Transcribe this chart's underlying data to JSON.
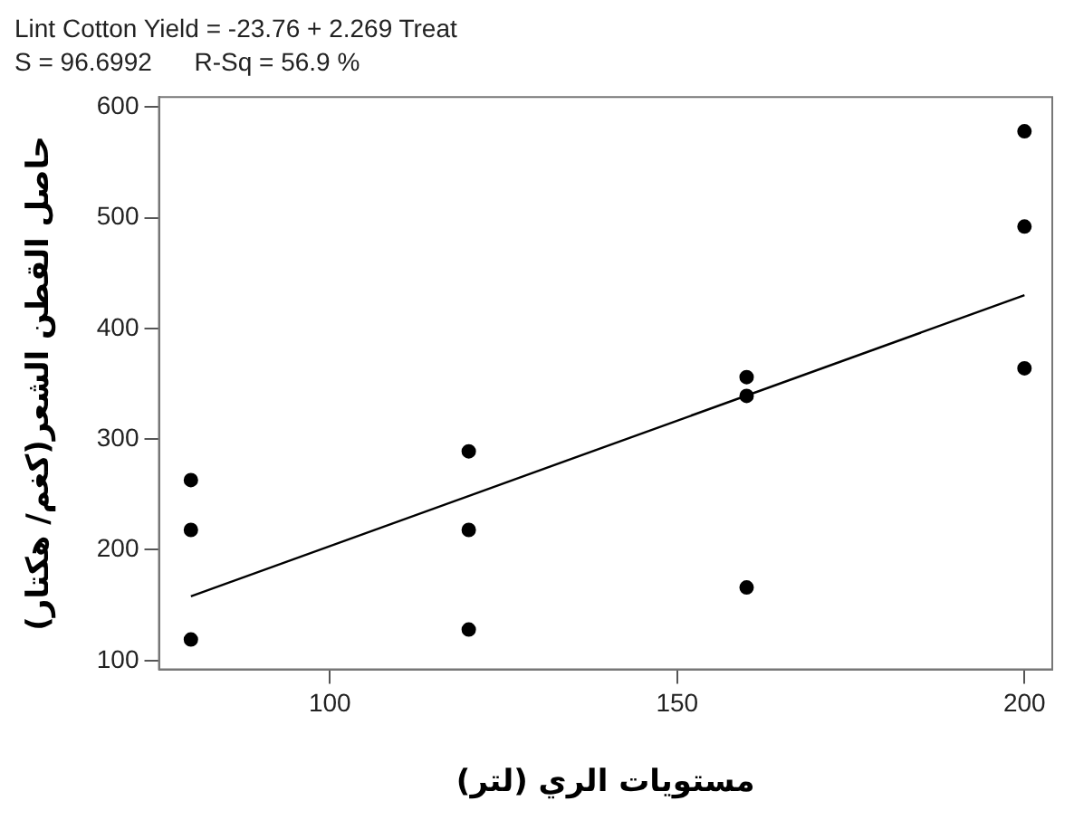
{
  "chart_data": {
    "type": "scatter",
    "title": "Lint Cotton Yield = -23.76 + 2.269 Treat",
    "subtitle": "S = 96.6992      R-Sq = 56.9 %",
    "xlabel": "مستويات الري (لتر)",
    "ylabel": "حاصل القطن الشعر(كغم/ هكتار)",
    "series": [
      {
        "color": "#000000",
        "x": [
          80,
          80,
          80,
          120,
          120,
          120,
          160,
          160,
          160,
          200,
          200,
          200
        ],
        "values": [
          263,
          218,
          119,
          289,
          218,
          128,
          356,
          339,
          166,
          578,
          492,
          364
        ]
      },
      {
        "type": "line",
        "color": "#000000",
        "x": [
          80,
          200
        ],
        "values": [
          158,
          430
        ],
        "marker": "none"
      }
    ],
    "xlim": [
      75.4,
      204
    ],
    "xticks": [
      100,
      150,
      200
    ],
    "ylim": [
      92,
      609
    ],
    "yticks": [
      100,
      200,
      300,
      400,
      500,
      600
    ],
    "grid": false,
    "legend": false,
    "marker": "circle",
    "line_style": "solid"
  }
}
